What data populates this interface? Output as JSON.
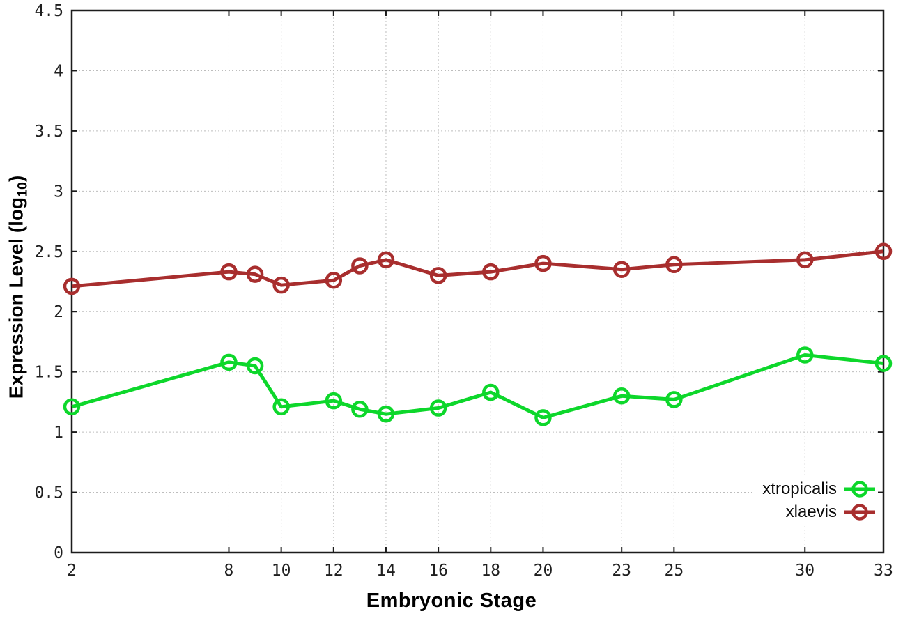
{
  "chart_data": {
    "type": "line",
    "title": "",
    "xlabel": "Embryonic Stage",
    "ylabel": "Expression Level (log10)",
    "ylabel_parts": {
      "prefix": "Expression Level (log",
      "subscript": "10",
      "suffix": ")"
    },
    "x": [
      2,
      8,
      9,
      10,
      12,
      13,
      14,
      16,
      18,
      20,
      23,
      25,
      30,
      33
    ],
    "series": [
      {
        "name": "xtropicalis",
        "color": "#0dd72b",
        "values": [
          1.21,
          1.58,
          1.55,
          1.21,
          1.26,
          1.19,
          1.15,
          1.2,
          1.33,
          1.12,
          1.3,
          1.27,
          1.64,
          1.57
        ]
      },
      {
        "name": "xlaevis",
        "color": "#a82e2e",
        "values": [
          2.21,
          2.33,
          2.31,
          2.22,
          2.26,
          2.38,
          2.43,
          2.3,
          2.33,
          2.4,
          2.35,
          2.39,
          2.43,
          2.5
        ]
      }
    ],
    "x_ticks": [
      2,
      8,
      10,
      12,
      14,
      16,
      18,
      20,
      23,
      25,
      30,
      33
    ],
    "y_ticks": [
      0,
      0.5,
      1,
      1.5,
      2,
      2.5,
      3,
      3.5,
      4,
      4.5
    ],
    "xlim": [
      2,
      33
    ],
    "ylim": [
      0,
      4.5
    ],
    "grid": true,
    "legend_position": "bottom-right",
    "style": {
      "axis_color": "#1c1c1c",
      "grid_color": "#bdbdbd",
      "tick_label_color": "#1f1f1f",
      "background": "#ffffff",
      "line_width": 5,
      "marker": "open-circle"
    }
  }
}
